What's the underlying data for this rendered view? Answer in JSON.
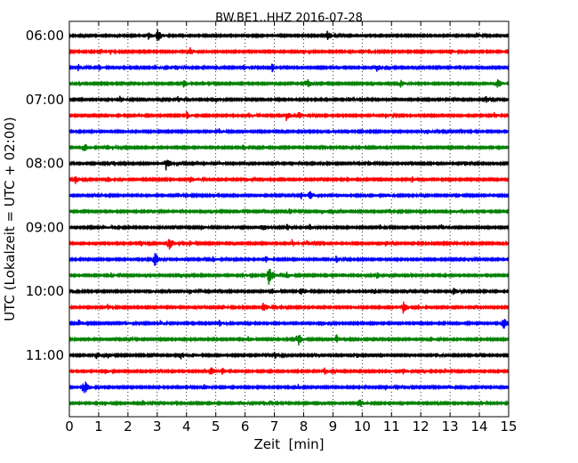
{
  "chart_data": {
    "type": "line",
    "title": "BW.BE1..HHZ 2016-07-28",
    "xlabel": "Zeit  [min]",
    "ylabel": "UTC (Lokalzeit = UTC + 02:00)",
    "xlim": [
      0,
      15
    ],
    "x_ticks": [
      "0",
      "1",
      "2",
      "3",
      "4",
      "5",
      "6",
      "7",
      "8",
      "9",
      "10",
      "11",
      "12",
      "13",
      "14",
      "15"
    ],
    "y_ticks": [
      {
        "label": "06:00",
        "row": 0
      },
      {
        "label": "07:00",
        "row": 4
      },
      {
        "label": "08:00",
        "row": 8
      },
      {
        "label": "09:00",
        "row": 12
      },
      {
        "label": "10:00",
        "row": 16
      },
      {
        "label": "11:00",
        "row": 20
      }
    ],
    "row_minutes": 15,
    "grid": "vertical dotted",
    "colors": [
      "#000000",
      "#ff0000",
      "#0000ff",
      "#008000"
    ],
    "rows": [
      {
        "start": "06:00",
        "events": [
          [
            2.7,
            4
          ],
          [
            3.0,
            8
          ],
          [
            8.8,
            5
          ],
          [
            13.9,
            3
          ]
        ]
      },
      {
        "start": "06:15",
        "events": [
          [
            1.4,
            3
          ],
          [
            4.1,
            5
          ],
          [
            7.9,
            3
          ],
          [
            10.2,
            3
          ],
          [
            13.0,
            3
          ]
        ]
      },
      {
        "start": "06:30",
        "events": [
          [
            0.3,
            4
          ],
          [
            1.0,
            3
          ],
          [
            2.9,
            3
          ],
          [
            3.6,
            4
          ],
          [
            5.0,
            3
          ],
          [
            5.9,
            4
          ],
          [
            6.9,
            6
          ],
          [
            10.5,
            4
          ],
          [
            13.3,
            3
          ]
        ]
      },
      {
        "start": "06:45",
        "events": [
          [
            3.9,
            4
          ],
          [
            4.5,
            3
          ],
          [
            8.1,
            6
          ],
          [
            11.3,
            4
          ],
          [
            14.6,
            6
          ]
        ]
      },
      {
        "start": "07:00",
        "events": [
          [
            1.7,
            4
          ],
          [
            3.7,
            3
          ],
          [
            5.0,
            3
          ],
          [
            9.5,
            3
          ],
          [
            14.2,
            4
          ]
        ]
      },
      {
        "start": "07:15",
        "events": [
          [
            4.0,
            4
          ],
          [
            6.1,
            3
          ],
          [
            7.4,
            6
          ],
          [
            7.8,
            5
          ],
          [
            10.8,
            3
          ],
          [
            14.5,
            3
          ]
        ]
      },
      {
        "start": "07:30",
        "events": [
          [
            5.1,
            3
          ],
          [
            8.8,
            3
          ],
          [
            12.2,
            3
          ]
        ]
      },
      {
        "start": "07:45",
        "events": [
          [
            0.5,
            7
          ],
          [
            1.3,
            3
          ],
          [
            5.9,
            3
          ]
        ]
      },
      {
        "start": "08:00",
        "events": [
          [
            1.5,
            4
          ],
          [
            3.3,
            8
          ],
          [
            5.1,
            3
          ],
          [
            10.2,
            3
          ],
          [
            13.5,
            3
          ]
        ]
      },
      {
        "start": "08:15",
        "events": [
          [
            0.2,
            5
          ],
          [
            1.3,
            3
          ],
          [
            4.1,
            4
          ],
          [
            6.0,
            3
          ],
          [
            11.7,
            3
          ]
        ]
      },
      {
        "start": "08:30",
        "events": [
          [
            3.7,
            3
          ],
          [
            4.9,
            3
          ],
          [
            7.9,
            4
          ],
          [
            8.2,
            5
          ],
          [
            10.8,
            3
          ],
          [
            13.2,
            3
          ]
        ]
      },
      {
        "start": "08:45",
        "events": [
          [
            2.8,
            3
          ],
          [
            5.7,
            3
          ],
          [
            7.5,
            3
          ],
          [
            8.6,
            3
          ],
          [
            10.9,
            3
          ],
          [
            12.1,
            3
          ],
          [
            13.0,
            3
          ]
        ]
      },
      {
        "start": "09:00",
        "events": [
          [
            1.1,
            3
          ],
          [
            4.5,
            3
          ],
          [
            6.6,
            4
          ],
          [
            7.4,
            4
          ],
          [
            8.2,
            3
          ],
          [
            10.6,
            3
          ],
          [
            12.7,
            3
          ]
        ]
      },
      {
        "start": "09:15",
        "events": [
          [
            2.4,
            4
          ],
          [
            3.4,
            8
          ],
          [
            4.1,
            3
          ],
          [
            7.6,
            4
          ],
          [
            8.1,
            3
          ],
          [
            10.8,
            3
          ],
          [
            13.1,
            3
          ]
        ]
      },
      {
        "start": "09:30",
        "events": [
          [
            2.9,
            9
          ],
          [
            4.9,
            3
          ],
          [
            6.7,
            3
          ],
          [
            9.1,
            4
          ],
          [
            13.6,
            3
          ]
        ]
      },
      {
        "start": "09:45",
        "events": [
          [
            1.4,
            3
          ],
          [
            3.8,
            3
          ],
          [
            5.9,
            3
          ],
          [
            6.8,
            12
          ],
          [
            7.4,
            4
          ],
          [
            9.3,
            3
          ],
          [
            10.5,
            3
          ]
        ]
      },
      {
        "start": "10:00",
        "events": [
          [
            0.1,
            3
          ],
          [
            2.7,
            3
          ],
          [
            4.1,
            3
          ],
          [
            6.9,
            4
          ],
          [
            7.9,
            6
          ],
          [
            10.4,
            3
          ],
          [
            13.1,
            4
          ]
        ]
      },
      {
        "start": "10:15",
        "events": [
          [
            1.3,
            3
          ],
          [
            5.2,
            3
          ],
          [
            6.6,
            7
          ],
          [
            7.2,
            3
          ],
          [
            11.4,
            7
          ],
          [
            11.9,
            3
          ]
        ]
      },
      {
        "start": "10:30",
        "events": [
          [
            0.3,
            4
          ],
          [
            1.9,
            3
          ],
          [
            3.1,
            3
          ],
          [
            5.1,
            4
          ],
          [
            8.6,
            3
          ],
          [
            14.8,
            8
          ]
        ]
      },
      {
        "start": "10:45",
        "events": [
          [
            2.0,
            3
          ],
          [
            6.1,
            3
          ],
          [
            7.8,
            8
          ],
          [
            9.1,
            6
          ],
          [
            12.3,
            3
          ]
        ]
      },
      {
        "start": "11:00",
        "events": [
          [
            0.9,
            5
          ],
          [
            1.3,
            3
          ],
          [
            3.8,
            5
          ],
          [
            4.2,
            3
          ],
          [
            7.0,
            4
          ],
          [
            9.8,
            3
          ],
          [
            12.5,
            3
          ]
        ]
      },
      {
        "start": "11:15",
        "events": [
          [
            1.2,
            3
          ],
          [
            4.8,
            7
          ],
          [
            5.2,
            4
          ],
          [
            8.7,
            4
          ],
          [
            11.4,
            3
          ],
          [
            12.8,
            3
          ]
        ]
      },
      {
        "start": "11:30",
        "events": [
          [
            0.5,
            9
          ],
          [
            3.0,
            3
          ],
          [
            4.6,
            4
          ],
          [
            7.8,
            3
          ],
          [
            10.8,
            4
          ],
          [
            13.0,
            3
          ]
        ]
      },
      {
        "start": "11:45",
        "events": [
          [
            1.2,
            3
          ],
          [
            2.5,
            3
          ],
          [
            5.9,
            3
          ],
          [
            6.6,
            3
          ],
          [
            9.9,
            6
          ],
          [
            14.0,
            3
          ]
        ]
      }
    ]
  }
}
